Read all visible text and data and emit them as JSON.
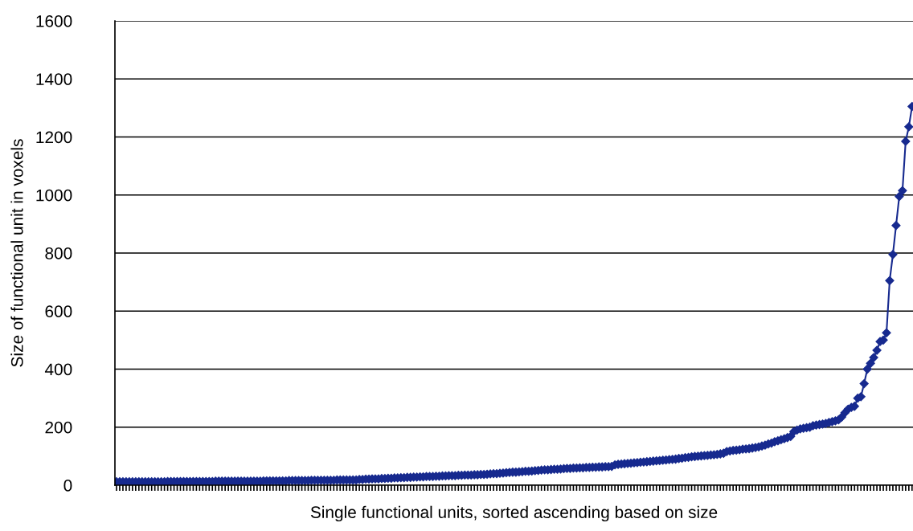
{
  "chart_data": {
    "type": "line",
    "xlabel": "Single functional units, sorted ascending based on size",
    "ylabel": "Size of functional unit in voxels",
    "categories": [
      null,
      null,
      null,
      null,
      null,
      null,
      null,
      null,
      null,
      null,
      null,
      null,
      null,
      null,
      null,
      null,
      null,
      null,
      null,
      null,
      null,
      null,
      null,
      null,
      null,
      null,
      null,
      null,
      null,
      null,
      null,
      null,
      null,
      null,
      null,
      null,
      null,
      null,
      null,
      null,
      null,
      null,
      null,
      null,
      null,
      null,
      null,
      null,
      null,
      null,
      null,
      null,
      null,
      null,
      null,
      null,
      null,
      null,
      null,
      null,
      null,
      null,
      null,
      null,
      null,
      null,
      null,
      null,
      null,
      null,
      null,
      null,
      null,
      null,
      null,
      null,
      null,
      null,
      null,
      null,
      null,
      null,
      null,
      null,
      null,
      null,
      null,
      null,
      null,
      null,
      null,
      null,
      null,
      null,
      null,
      null,
      null,
      null,
      null,
      null,
      null,
      null,
      null,
      null,
      null,
      null,
      null,
      null,
      null,
      null,
      null,
      null,
      null,
      null,
      null,
      null,
      null,
      null,
      null,
      null,
      null,
      null,
      null,
      null,
      null,
      null,
      null,
      null,
      null,
      null,
      null,
      null,
      null,
      null,
      null,
      null,
      null,
      null,
      null,
      null,
      null,
      null,
      null,
      null,
      null,
      null,
      null,
      null,
      null,
      null,
      null,
      null,
      null,
      null,
      null,
      null,
      null,
      null,
      null,
      null,
      null,
      null,
      null,
      null,
      null,
      null,
      null,
      null,
      null,
      null,
      null,
      null,
      null,
      null,
      null,
      null,
      null,
      null,
      null,
      null,
      null,
      null,
      null,
      null,
      null,
      null,
      null,
      null,
      null,
      null,
      null,
      null,
      null,
      null,
      null,
      null,
      null,
      null,
      null,
      null,
      null,
      null,
      null,
      null,
      null,
      null,
      null,
      null,
      null,
      null,
      null,
      null,
      null,
      null,
      null,
      null,
      null,
      null,
      null,
      null,
      null,
      null,
      null,
      null,
      null,
      null,
      null,
      null,
      null,
      null,
      null,
      null,
      null,
      null,
      null,
      null,
      null,
      null,
      null,
      null,
      null,
      null,
      null,
      null,
      null,
      null,
      null,
      null,
      null,
      null
    ],
    "series": [
      {
        "color": "#172a8f",
        "values": [
          12,
          12,
          12,
          12,
          12,
          12,
          12,
          12,
          12,
          12,
          12,
          12,
          12,
          12,
          12,
          12,
          13,
          13,
          13,
          13,
          13,
          13,
          13,
          13,
          13,
          13,
          13,
          13,
          13,
          13,
          13,
          14,
          14,
          14,
          14,
          14,
          14,
          14,
          14,
          14,
          14,
          14,
          14,
          14,
          14,
          14,
          15,
          15,
          15,
          15,
          15,
          15,
          15,
          15,
          16,
          16,
          16,
          16,
          16,
          16,
          16,
          17,
          17,
          17,
          17,
          17,
          17,
          17,
          17,
          18,
          18,
          18,
          18,
          18,
          18,
          18,
          20,
          20,
          21,
          21,
          22,
          22,
          22,
          23,
          23,
          24,
          24,
          25,
          25,
          26,
          26,
          27,
          27,
          28,
          28,
          29,
          29,
          30,
          30,
          30,
          31,
          31,
          32,
          32,
          33,
          33,
          33,
          34,
          34,
          35,
          35,
          35,
          36,
          36,
          37,
          37,
          38,
          39,
          40,
          40,
          41,
          42,
          43,
          44,
          45,
          45,
          46,
          47,
          48,
          48,
          49,
          50,
          51,
          52,
          53,
          53,
          54,
          55,
          55,
          56,
          57,
          58,
          58,
          59,
          59,
          60,
          60,
          61,
          61,
          62,
          62,
          63,
          63,
          64,
          64,
          65,
          70,
          72,
          73,
          74,
          75,
          76,
          77,
          78,
          79,
          80,
          81,
          82,
          83,
          84,
          85,
          86,
          87,
          88,
          89,
          90,
          92,
          93,
          95,
          96,
          98,
          99,
          100,
          101,
          102,
          103,
          104,
          105,
          106,
          108,
          110,
          116,
          118,
          120,
          121,
          122,
          124,
          125,
          126,
          128,
          130,
          132,
          135,
          138,
          142,
          145,
          150,
          153,
          157,
          160,
          164,
          168,
          185,
          190,
          194,
          196,
          198,
          200,
          205,
          207,
          209,
          211,
          213,
          216,
          219,
          222,
          225,
          235,
          250,
          262,
          268,
          272,
          300,
          305,
          350,
          400,
          420,
          440,
          465,
          495,
          500,
          525,
          705,
          795,
          895,
          995,
          1015,
          1185,
          1235,
          1305
        ]
      }
    ],
    "ylim": [
      0,
      1600
    ],
    "yticks": [
      0,
      200,
      400,
      600,
      800,
      1000,
      1200,
      1400,
      1600
    ],
    "grid": "y",
    "marker": "diamond",
    "line_style": "solid",
    "legend": false
  }
}
